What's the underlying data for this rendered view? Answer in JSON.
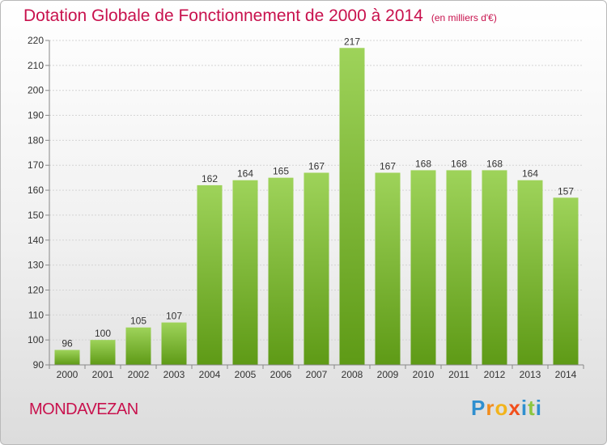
{
  "chart_data": {
    "type": "bar",
    "title": "Dotation Globale de Fonctionnement de 2000 à 2014",
    "unit_note": "(en milliers d'€)",
    "categories": [
      "2000",
      "2001",
      "2002",
      "2003",
      "2004",
      "2005",
      "2006",
      "2007",
      "2008",
      "2009",
      "2010",
      "2011",
      "2012",
      "2013",
      "2014"
    ],
    "values": [
      96,
      100,
      105,
      107,
      162,
      164,
      165,
      167,
      217,
      167,
      168,
      168,
      168,
      164,
      157
    ],
    "ylim": [
      90,
      220
    ],
    "yticks": [
      90,
      100,
      110,
      120,
      130,
      140,
      150,
      160,
      170,
      180,
      190,
      200,
      210,
      220
    ],
    "grid": true,
    "bar_color": "#7fc22e",
    "bar_color_top": "#9ed35a",
    "bar_color_bottom": "#5e9a16"
  },
  "footer": {
    "commune": "MONDAVEZAN",
    "logo_letters": [
      "P",
      "r",
      "o",
      "x",
      "i",
      "t",
      "i"
    ]
  },
  "colors": {
    "title": "#c8114d"
  }
}
